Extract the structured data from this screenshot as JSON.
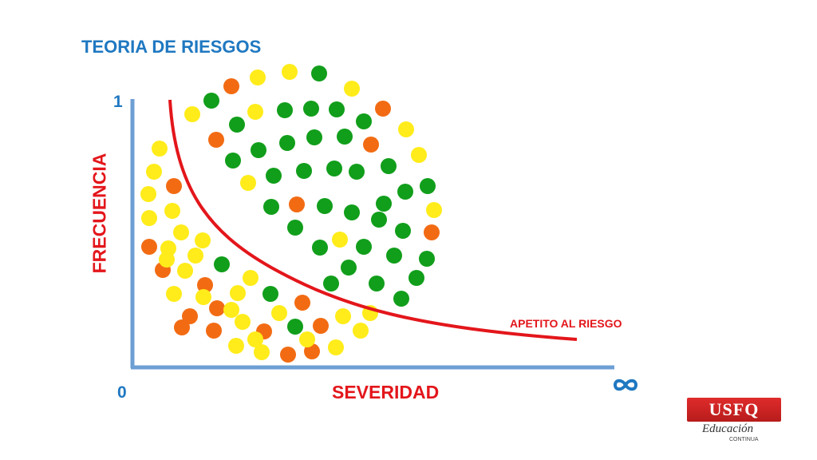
{
  "slide": {
    "title": "TEORIA DE RIESGOS",
    "y_tick_top": "1",
    "x_tick_origin": "0",
    "y_axis_label": "FRECUENCIA",
    "x_axis_label": "SEVERIDAD",
    "x_axis_end_icon": "infinity-icon",
    "curve_label": "APETITO AL RIESGO"
  },
  "logo": {
    "main": "USFQ",
    "sub": "Educación",
    "sub2": "CONTINUA"
  },
  "colors": {
    "axis": "#6d9fd4",
    "accent_blue": "#1f78c1",
    "curve": "#e3161b",
    "green": "#119e1b",
    "yellow": "#ffec1a",
    "orange": "#f26b13"
  },
  "risk_dots": {
    "legend_note": "",
    "counts": {
      "green": 39,
      "yellow": 33,
      "orange": 21
    }
  }
}
